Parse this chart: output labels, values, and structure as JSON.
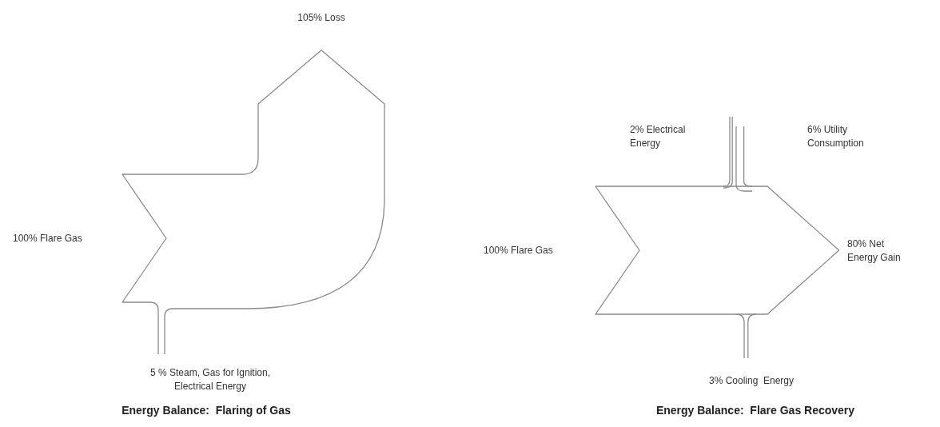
{
  "chart_data": [
    {
      "type": "other",
      "title": "Energy Balance:  Flaring of Gas",
      "categories": [
        "Flare Gas",
        "Steam, Gas for Ignition, Electrical Energy",
        "Loss"
      ],
      "values": [
        100,
        5,
        105
      ],
      "value_labels": [
        "100%",
        "5 %",
        "105%"
      ]
    },
    {
      "type": "other",
      "title": "Energy Balance:  Flare Gas Recovery",
      "categories": [
        "Flare Gas",
        "Electrical Energy",
        "Utility Consumption",
        "Net Energy Gain",
        "Cooling  Energy"
      ],
      "values": [
        100,
        2,
        6,
        80,
        3
      ],
      "value_labels": [
        "100%",
        "2%",
        "6%",
        "80%",
        "3%"
      ]
    }
  ]
}
